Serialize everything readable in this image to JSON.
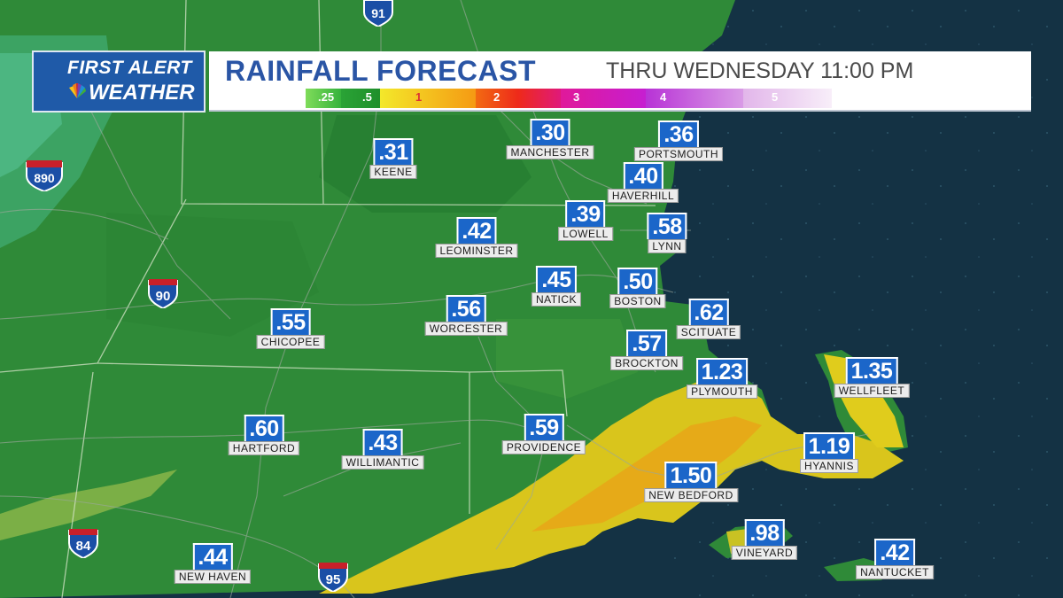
{
  "header": {
    "logo_line1": "FIRST ALERT",
    "logo_line2": "WEATHER",
    "title": "RAINFALL FORECAST",
    "subtitle": "THRU WEDNESDAY 11:00 PM"
  },
  "legend": {
    "labels": [
      ".25",
      ".5",
      "1",
      "2",
      "3",
      "4",
      "5"
    ],
    "colors": [
      "#35b23c",
      "#1f8f2a",
      "#f3e82a",
      "#f59a13",
      "#ee2a1a",
      "#e0199a",
      "#b833d6",
      "#d99be6",
      "#f4e6f6"
    ]
  },
  "colors": {
    "accent": "#1b66c9",
    "title": "#2a55a5",
    "land_green": "#2f8f37",
    "ocean": "#143244",
    "rain_yellow": "#efd21a"
  },
  "cities": [
    {
      "name": "KEENE",
      "value": ".31"
    },
    {
      "name": "MANCHESTER",
      "value": ".30"
    },
    {
      "name": "PORTSMOUTH",
      "value": ".36"
    },
    {
      "name": "HAVERHILL",
      "value": ".40"
    },
    {
      "name": "LOWELL",
      "value": ".39"
    },
    {
      "name": "LYNN",
      "value": ".58"
    },
    {
      "name": "LEOMINSTER",
      "value": ".42"
    },
    {
      "name": "NATICK",
      "value": ".45"
    },
    {
      "name": "BOSTON",
      "value": ".50"
    },
    {
      "name": "WORCESTER",
      "value": ".56"
    },
    {
      "name": "CHICOPEE",
      "value": ".55"
    },
    {
      "name": "SCITUATE",
      "value": ".62"
    },
    {
      "name": "BROCKTON",
      "value": ".57"
    },
    {
      "name": "PLYMOUTH",
      "value": "1.23"
    },
    {
      "name": "WELLFLEET",
      "value": "1.35"
    },
    {
      "name": "HARTFORD",
      "value": ".60"
    },
    {
      "name": "WILLIMANTIC",
      "value": ".43"
    },
    {
      "name": "PROVIDENCE",
      "value": ".59"
    },
    {
      "name": "HYANNIS",
      "value": "1.19"
    },
    {
      "name": "NEW BEDFORD",
      "value": "1.50"
    },
    {
      "name": "VINEYARD",
      "value": ".98"
    },
    {
      "name": "NANTUCKET",
      "value": ".42"
    },
    {
      "name": "NEW HAVEN",
      "value": ".44"
    }
  ],
  "highways": [
    {
      "number": "91",
      "type": "interstate"
    },
    {
      "number": "890",
      "type": "interstate"
    },
    {
      "number": "90",
      "type": "interstate"
    },
    {
      "number": "84",
      "type": "interstate"
    },
    {
      "number": "95",
      "type": "interstate"
    }
  ]
}
